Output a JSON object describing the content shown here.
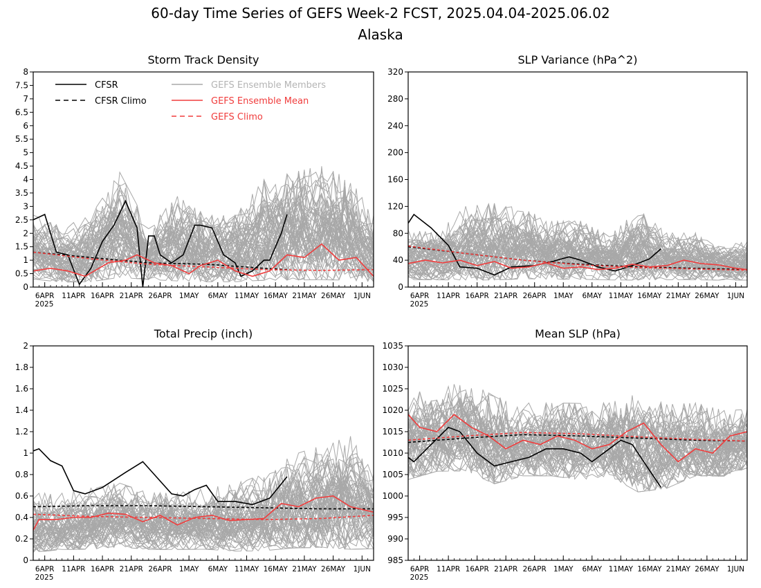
{
  "page": {
    "title": "60-day Time Series of GEFS Week-2 FCST, 2025.04.04-2025.06.02",
    "subtitle": "Alaska"
  },
  "legend": {
    "cfsr": "CFSR",
    "cfsr_climo": "CFSR Climo",
    "gefs_members": "GEFS Ensemble Members",
    "gefs_mean": "GEFS Ensemble Mean",
    "gefs_climo": "GEFS Climo"
  },
  "colors": {
    "cfsr": "#000000",
    "members": "#a8a8a8",
    "legend_members_text": "#b4b4b4",
    "gefs": "#f03c3c"
  },
  "chart_data": [
    {
      "type": "line",
      "title": "Storm Track Density",
      "x_tick_labels": [
        "6APR",
        "11APR",
        "16APR",
        "21APR",
        "26APR",
        "1MAY",
        "6MAY",
        "11MAY",
        "16MAY",
        "21MAY",
        "26MAY",
        "1JUN"
      ],
      "x_year_label": "2025",
      "x_start": "2025-04-04",
      "x_end": "2025-06-02",
      "ylim": [
        0,
        8
      ],
      "yticks": [
        0,
        0.5,
        1,
        1.5,
        2,
        2.5,
        3,
        3.5,
        4,
        4.5,
        5,
        5.5,
        6,
        6.5,
        7,
        7.5,
        8
      ],
      "ytick_labels": [
        "0",
        "0.5",
        "1",
        "1.5",
        "2",
        "2.5",
        "3",
        "3.5",
        "4",
        "4.5",
        "5",
        "5.5",
        "6",
        "6.5",
        "7",
        "7.5",
        "8"
      ],
      "legend_visible": true,
      "members_envelope": {
        "x": [
          "2025-04-04",
          "2025-04-09",
          "2025-04-14",
          "2025-04-19",
          "2025-04-24",
          "2025-04-29",
          "2025-05-04",
          "2025-05-09",
          "2025-05-14",
          "2025-05-19",
          "2025-05-24",
          "2025-05-29",
          "2025-06-02"
        ],
        "low": [
          0.2,
          0.1,
          0.1,
          0.2,
          0.2,
          0.1,
          0.1,
          0.1,
          0.1,
          0.1,
          0.1,
          0.1,
          0.1
        ],
        "high": [
          3.0,
          2.5,
          3.0,
          4.8,
          2.5,
          3.8,
          3.0,
          3.0,
          4.5,
          4.8,
          5.1,
          4.5,
          3.0
        ]
      },
      "series": [
        {
          "name": "CFSR",
          "x": [
            "2025-04-04",
            "2025-04-06",
            "2025-04-08",
            "2025-04-10",
            "2025-04-12",
            "2025-04-14",
            "2025-04-16",
            "2025-04-18",
            "2025-04-20",
            "2025-04-22",
            "2025-04-23",
            "2025-04-24",
            "2025-04-25",
            "2025-04-26",
            "2025-04-28",
            "2025-04-30",
            "2025-05-02",
            "2025-05-03",
            "2025-05-05",
            "2025-05-07",
            "2025-05-09",
            "2025-05-10",
            "2025-05-12",
            "2025-05-14",
            "2025-05-15",
            "2025-05-17",
            "2025-05-18"
          ],
          "y": [
            2.5,
            2.7,
            1.3,
            1.2,
            0.1,
            0.7,
            1.7,
            2.3,
            3.2,
            2.2,
            0.0,
            1.9,
            1.9,
            1.2,
            0.9,
            1.2,
            2.3,
            2.3,
            2.2,
            1.2,
            0.9,
            0.4,
            0.6,
            1.0,
            1.0,
            2.0,
            2.7
          ],
          "color": "#000000",
          "dash": "solid"
        },
        {
          "name": "CFSR Climo",
          "x": [
            "2025-04-04",
            "2025-04-14",
            "2025-04-24",
            "2025-05-04",
            "2025-05-14",
            "2025-05-18"
          ],
          "y": [
            1.3,
            1.1,
            0.9,
            0.85,
            0.7,
            0.65
          ],
          "color": "#000000",
          "dash": "dashed"
        },
        {
          "name": "GEFS Ensemble Mean",
          "x": [
            "2025-04-04",
            "2025-04-07",
            "2025-04-10",
            "2025-04-13",
            "2025-04-17",
            "2025-04-20",
            "2025-04-22",
            "2025-04-25",
            "2025-04-28",
            "2025-05-01",
            "2025-05-03",
            "2025-05-06",
            "2025-05-09",
            "2025-05-12",
            "2025-05-15",
            "2025-05-18",
            "2025-05-21",
            "2025-05-24",
            "2025-05-27",
            "2025-05-30",
            "2025-06-02"
          ],
          "y": [
            0.6,
            0.7,
            0.6,
            0.4,
            0.9,
            1.0,
            1.2,
            0.9,
            0.8,
            0.5,
            0.8,
            1.0,
            0.6,
            0.4,
            0.6,
            1.2,
            1.1,
            1.6,
            1.0,
            1.1,
            0.4
          ],
          "color": "#f03c3c",
          "dash": "solid"
        },
        {
          "name": "GEFS Climo",
          "x": [
            "2025-04-04",
            "2025-04-14",
            "2025-04-24",
            "2025-05-04",
            "2025-05-14",
            "2025-05-24",
            "2025-06-02"
          ],
          "y": [
            1.3,
            1.05,
            0.85,
            0.75,
            0.65,
            0.62,
            0.65
          ],
          "color": "#f03c3c",
          "dash": "dashed"
        }
      ]
    },
    {
      "type": "line",
      "title": "SLP Variance (hPa^2)",
      "x_tick_labels": [
        "6APR",
        "11APR",
        "16APR",
        "21APR",
        "26APR",
        "1MAY",
        "6MAY",
        "11MAY",
        "16MAY",
        "21MAY",
        "26MAY",
        "1JUN"
      ],
      "x_year_label": "2025",
      "x_start": "2025-04-04",
      "x_end": "2025-06-02",
      "ylim": [
        0,
        320
      ],
      "yticks": [
        0,
        40,
        80,
        120,
        160,
        200,
        240,
        280,
        320
      ],
      "ytick_labels": [
        "0",
        "40",
        "80",
        "120",
        "160",
        "200",
        "240",
        "280",
        "320"
      ],
      "legend_visible": false,
      "members_envelope": {
        "x": [
          "2025-04-04",
          "2025-04-09",
          "2025-04-14",
          "2025-04-19",
          "2025-04-24",
          "2025-04-29",
          "2025-05-04",
          "2025-05-09",
          "2025-05-14",
          "2025-05-19",
          "2025-05-24",
          "2025-05-29",
          "2025-06-02"
        ],
        "low": [
          8,
          8,
          6,
          6,
          8,
          8,
          8,
          8,
          6,
          8,
          8,
          8,
          8
        ],
        "high": [
          95,
          90,
          135,
          140,
          130,
          110,
          110,
          85,
          130,
          90,
          90,
          70,
          75
        ]
      },
      "series": [
        {
          "name": "CFSR",
          "x": [
            "2025-04-04",
            "2025-04-05",
            "2025-04-08",
            "2025-04-11",
            "2025-04-13",
            "2025-04-16",
            "2025-04-19",
            "2025-04-22",
            "2025-04-26",
            "2025-04-29",
            "2025-05-02",
            "2025-05-04",
            "2025-05-07",
            "2025-05-10",
            "2025-05-13",
            "2025-05-16",
            "2025-05-18"
          ],
          "y": [
            95,
            108,
            88,
            62,
            30,
            28,
            18,
            30,
            32,
            38,
            45,
            40,
            30,
            24,
            32,
            42,
            57
          ],
          "color": "#000000",
          "dash": "solid"
        },
        {
          "name": "CFSR Climo",
          "x": [
            "2025-04-04",
            "2025-04-14",
            "2025-04-24",
            "2025-05-04",
            "2025-05-14",
            "2025-05-24",
            "2025-06-02"
          ],
          "y": [
            60,
            50,
            40,
            34,
            30,
            28,
            26
          ],
          "color": "#000000",
          "dash": "dashed"
        },
        {
          "name": "GEFS Ensemble Mean",
          "x": [
            "2025-04-04",
            "2025-04-07",
            "2025-04-10",
            "2025-04-13",
            "2025-04-16",
            "2025-04-19",
            "2025-04-22",
            "2025-04-25",
            "2025-04-28",
            "2025-05-01",
            "2025-05-04",
            "2025-05-07",
            "2025-05-10",
            "2025-05-13",
            "2025-05-16",
            "2025-05-19",
            "2025-05-22",
            "2025-05-25",
            "2025-05-28",
            "2025-05-31",
            "2025-06-02"
          ],
          "y": [
            35,
            40,
            36,
            40,
            32,
            38,
            28,
            30,
            36,
            28,
            30,
            26,
            28,
            34,
            30,
            32,
            40,
            35,
            33,
            28,
            26
          ],
          "color": "#f03c3c",
          "dash": "solid"
        },
        {
          "name": "GEFS Climo",
          "x": [
            "2025-04-04",
            "2025-04-14",
            "2025-04-24",
            "2025-05-04",
            "2025-05-14",
            "2025-05-24",
            "2025-06-02"
          ],
          "y": [
            61,
            50,
            40,
            33,
            29,
            27,
            25
          ],
          "color": "#f03c3c",
          "dash": "dashed"
        }
      ]
    },
    {
      "type": "line",
      "title": "Total Precip (inch)",
      "x_tick_labels": [
        "6APR",
        "11APR",
        "16APR",
        "21APR",
        "26APR",
        "1MAY",
        "6MAY",
        "11MAY",
        "16MAY",
        "21MAY",
        "26MAY",
        "1JUN"
      ],
      "x_year_label": "2025",
      "x_start": "2025-04-04",
      "x_end": "2025-06-02",
      "ylim": [
        0,
        2
      ],
      "yticks": [
        0,
        0.2,
        0.4,
        0.6,
        0.8,
        1,
        1.2,
        1.4,
        1.6,
        1.8,
        2
      ],
      "ytick_labels": [
        "0",
        "0.2",
        "0.4",
        "0.6",
        "0.8",
        "1",
        "1.2",
        "1.4",
        "1.6",
        "1.8",
        "2"
      ],
      "legend_visible": false,
      "members_envelope": {
        "x": [
          "2025-04-04",
          "2025-04-09",
          "2025-04-14",
          "2025-04-19",
          "2025-04-24",
          "2025-04-29",
          "2025-05-04",
          "2025-05-09",
          "2025-05-14",
          "2025-05-19",
          "2025-05-24",
          "2025-05-29",
          "2025-06-02"
        ],
        "low": [
          0.05,
          0.08,
          0.08,
          0.1,
          0.08,
          0.08,
          0.08,
          0.06,
          0.06,
          0.08,
          0.08,
          0.06,
          0.08
        ],
        "high": [
          0.7,
          0.7,
          0.75,
          0.8,
          0.7,
          0.7,
          0.75,
          0.8,
          0.9,
          1.1,
          1.2,
          1.3,
          0.9
        ]
      },
      "series": [
        {
          "name": "CFSR",
          "x": [
            "2025-04-04",
            "2025-04-05",
            "2025-04-07",
            "2025-04-09",
            "2025-04-11",
            "2025-04-13",
            "2025-04-16",
            "2025-04-18",
            "2025-04-20",
            "2025-04-23",
            "2025-04-25",
            "2025-04-28",
            "2025-04-30",
            "2025-05-02",
            "2025-05-04",
            "2025-05-06",
            "2025-05-09",
            "2025-05-12",
            "2025-05-15",
            "2025-05-18"
          ],
          "y": [
            1.02,
            1.04,
            0.93,
            0.88,
            0.65,
            0.62,
            0.68,
            0.75,
            0.82,
            0.92,
            0.8,
            0.62,
            0.6,
            0.66,
            0.7,
            0.55,
            0.55,
            0.52,
            0.58,
            0.78
          ],
          "color": "#000000",
          "dash": "solid"
        },
        {
          "name": "CFSR Climo",
          "x": [
            "2025-04-04",
            "2025-04-14",
            "2025-04-24",
            "2025-05-04",
            "2025-05-14",
            "2025-05-24",
            "2025-06-02"
          ],
          "y": [
            0.5,
            0.51,
            0.51,
            0.5,
            0.49,
            0.48,
            0.48
          ],
          "color": "#000000",
          "dash": "dashed"
        },
        {
          "name": "GEFS Ensemble Mean",
          "x": [
            "2025-04-04",
            "2025-04-05",
            "2025-04-08",
            "2025-04-11",
            "2025-04-14",
            "2025-04-17",
            "2025-04-20",
            "2025-04-23",
            "2025-04-26",
            "2025-04-29",
            "2025-05-02",
            "2025-05-05",
            "2025-05-08",
            "2025-05-11",
            "2025-05-14",
            "2025-05-17",
            "2025-05-20",
            "2025-05-23",
            "2025-05-26",
            "2025-05-29",
            "2025-06-02"
          ],
          "y": [
            0.28,
            0.38,
            0.38,
            0.4,
            0.4,
            0.44,
            0.43,
            0.36,
            0.42,
            0.33,
            0.4,
            0.42,
            0.37,
            0.38,
            0.39,
            0.53,
            0.5,
            0.58,
            0.6,
            0.5,
            0.45
          ],
          "color": "#f03c3c",
          "dash": "solid"
        },
        {
          "name": "GEFS Climo",
          "x": [
            "2025-04-04",
            "2025-04-14",
            "2025-04-24",
            "2025-05-04",
            "2025-05-14",
            "2025-05-24",
            "2025-06-02"
          ],
          "y": [
            0.43,
            0.41,
            0.4,
            0.39,
            0.38,
            0.39,
            0.42
          ],
          "color": "#f03c3c",
          "dash": "dashed"
        }
      ]
    },
    {
      "type": "line",
      "title": "Mean SLP (hPa)",
      "x_tick_labels": [
        "6APR",
        "11APR",
        "16APR",
        "21APR",
        "26APR",
        "1MAY",
        "6MAY",
        "11MAY",
        "16MAY",
        "21MAY",
        "26MAY",
        "1JUN"
      ],
      "x_year_label": "2025",
      "x_start": "2025-04-04",
      "x_end": "2025-06-02",
      "ylim": [
        985,
        1035
      ],
      "yticks": [
        985,
        990,
        995,
        1000,
        1005,
        1010,
        1015,
        1020,
        1025,
        1030,
        1035
      ],
      "ytick_labels": [
        "985",
        "990",
        "995",
        "1000",
        "1005",
        "1010",
        "1015",
        "1020",
        "1025",
        "1030",
        "1035"
      ],
      "legend_visible": false,
      "members_envelope": {
        "x": [
          "2025-04-04",
          "2025-04-09",
          "2025-04-14",
          "2025-04-19",
          "2025-04-24",
          "2025-04-29",
          "2025-05-04",
          "2025-05-09",
          "2025-05-14",
          "2025-05-19",
          "2025-05-24",
          "2025-05-29",
          "2025-06-02"
        ],
        "low": [
          1003,
          1005,
          1005,
          1002,
          1004,
          1004,
          1003,
          1004,
          1000,
          1001,
          1004,
          1004,
          1006
        ],
        "high": [
          1027,
          1027,
          1030,
          1026,
          1024,
          1024,
          1024,
          1024,
          1027,
          1024,
          1024,
          1022,
          1022
        ]
      },
      "series": [
        {
          "name": "CFSR",
          "x": [
            "2025-04-04",
            "2025-04-05",
            "2025-04-08",
            "2025-04-11",
            "2025-04-13",
            "2025-04-16",
            "2025-04-19",
            "2025-04-22",
            "2025-04-25",
            "2025-04-28",
            "2025-05-01",
            "2025-05-04",
            "2025-05-06",
            "2025-05-09",
            "2025-05-11",
            "2025-05-13",
            "2025-05-16",
            "2025-05-18"
          ],
          "y": [
            1009,
            1008,
            1012,
            1016,
            1015,
            1010,
            1007,
            1008,
            1009,
            1011,
            1011,
            1010,
            1008,
            1011,
            1013,
            1012,
            1006,
            1002
          ],
          "color": "#000000",
          "dash": "solid"
        },
        {
          "name": "CFSR Climo",
          "x": [
            "2025-04-04",
            "2025-04-14",
            "2025-04-24",
            "2025-05-04",
            "2025-05-14",
            "2025-05-24",
            "2025-06-02"
          ],
          "y": [
            1012.5,
            1013.5,
            1014.3,
            1014.0,
            1013.5,
            1013.0,
            1012.8
          ],
          "color": "#000000",
          "dash": "dashed"
        },
        {
          "name": "GEFS Ensemble Mean",
          "x": [
            "2025-04-04",
            "2025-04-06",
            "2025-04-09",
            "2025-04-12",
            "2025-04-15",
            "2025-04-18",
            "2025-04-21",
            "2025-04-24",
            "2025-04-27",
            "2025-04-30",
            "2025-05-03",
            "2025-05-06",
            "2025-05-09",
            "2025-05-12",
            "2025-05-15",
            "2025-05-18",
            "2025-05-21",
            "2025-05-24",
            "2025-05-27",
            "2025-05-30",
            "2025-06-02"
          ],
          "y": [
            1019,
            1016,
            1015,
            1019,
            1016,
            1014,
            1011,
            1013,
            1012,
            1014,
            1013,
            1011,
            1012,
            1015,
            1017,
            1012,
            1008,
            1011,
            1010,
            1014,
            1015
          ],
          "color": "#f03c3c",
          "dash": "solid"
        },
        {
          "name": "GEFS Climo",
          "x": [
            "2025-04-04",
            "2025-04-14",
            "2025-04-24",
            "2025-05-04",
            "2025-05-14",
            "2025-05-24",
            "2025-06-02"
          ],
          "y": [
            1013,
            1014,
            1014.8,
            1014.5,
            1013.8,
            1013.2,
            1012.8
          ],
          "color": "#f03c3c",
          "dash": "dashed"
        }
      ]
    }
  ]
}
